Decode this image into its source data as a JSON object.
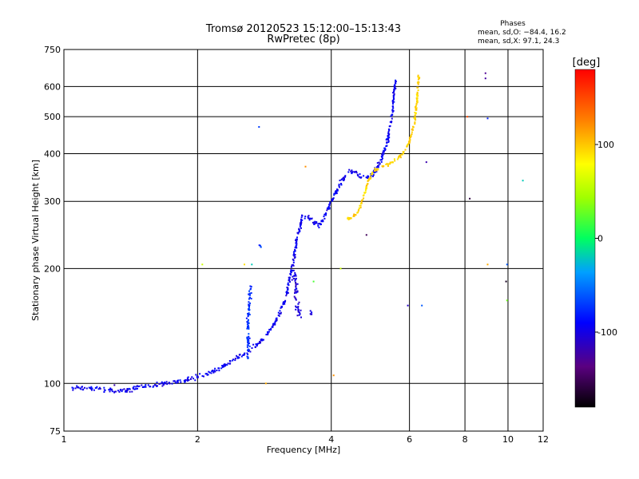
{
  "chart_data": {
    "type": "scatter",
    "title": "Tromsø 20120523 15:12:00–15:13:43",
    "subtitle": "RwPretec (8p)",
    "xlabel": "Frequency [MHz]",
    "ylabel": "Stationary phase Virtual Height [km]",
    "x_scale": "log",
    "y_scale": "log",
    "xlim": [
      1,
      12
    ],
    "ylim": [
      75,
      750
    ],
    "x_ticks": [
      1,
      2,
      4,
      6,
      8,
      10,
      12
    ],
    "y_ticks": [
      75,
      100,
      200,
      300,
      400,
      500,
      600,
      750
    ],
    "grid": true,
    "phases": {
      "heading": "Phases",
      "line1": "mean, sd,O: −84.4, 16.2",
      "line2": "mean, sd,X:  97.1, 24.3"
    },
    "colorbar": {
      "label": "[deg]",
      "range": [
        -180,
        180
      ],
      "ticks": [
        100,
        0,
        -100
      ]
    },
    "traces": [
      {
        "points": [
          [
            1.05,
            97
          ],
          [
            1.2,
            97
          ],
          [
            1.3,
            95.5
          ],
          [
            1.4,
            96
          ],
          [
            1.5,
            98
          ],
          [
            1.7,
            100
          ],
          [
            1.9,
            102
          ],
          [
            2.05,
            105
          ],
          [
            2.2,
            108
          ],
          [
            2.4,
            115
          ],
          [
            2.6,
            121
          ],
          [
            2.8,
            130
          ],
          [
            3.0,
            145
          ],
          [
            3.15,
            165
          ],
          [
            3.25,
            195
          ],
          [
            3.35,
            240
          ],
          [
            3.45,
            275
          ],
          [
            3.6,
            270
          ],
          [
            3.75,
            258
          ],
          [
            3.85,
            270
          ],
          [
            4.0,
            300
          ],
          [
            4.2,
            335
          ],
          [
            4.35,
            360
          ],
          [
            4.5,
            360
          ],
          [
            4.7,
            345
          ],
          [
            4.95,
            352
          ],
          [
            5.15,
            380
          ],
          [
            5.35,
            430
          ],
          [
            5.5,
            510
          ],
          [
            5.58,
            630
          ]
        ],
        "phase": -95,
        "spread": 0.018
      },
      {
        "points": [
          [
            4.3,
            268
          ],
          [
            4.45,
            272
          ],
          [
            4.6,
            282
          ],
          [
            4.7,
            302
          ],
          [
            4.85,
            340
          ],
          [
            5.0,
            362
          ],
          [
            5.2,
            370
          ],
          [
            5.4,
            375
          ],
          [
            5.6,
            385
          ],
          [
            5.8,
            400
          ],
          [
            6.0,
            430
          ],
          [
            6.15,
            480
          ],
          [
            6.25,
            560
          ],
          [
            6.3,
            640
          ]
        ],
        "phase": 95,
        "spread": 0.012
      },
      {
        "points": [
          [
            2.6,
            115
          ],
          [
            2.6,
            150
          ],
          [
            2.63,
            180
          ]
        ],
        "phase": -75,
        "spread": 0.02
      },
      {
        "points": [
          [
            2.75,
            230
          ],
          [
            2.8,
            228
          ]
        ],
        "phase": -75,
        "spread": 0.015
      },
      {
        "points": [
          [
            3.3,
            200
          ],
          [
            3.35,
            165
          ],
          [
            3.4,
            150
          ]
        ],
        "phase": -105,
        "spread": 0.035
      },
      {
        "points": [
          [
            3.6,
            150
          ],
          [
            3.6,
            155
          ]
        ],
        "phase": -100,
        "spread": 0.02
      }
    ],
    "outliers": [
      [
        1.3,
        99,
        -120
      ],
      [
        2.05,
        205,
        60
      ],
      [
        2.55,
        205,
        90
      ],
      [
        2.65,
        205,
        -20
      ],
      [
        2.75,
        470,
        -70
      ],
      [
        2.85,
        100,
        110
      ],
      [
        3.5,
        370,
        120
      ],
      [
        3.65,
        185,
        20
      ],
      [
        4.05,
        105,
        120
      ],
      [
        4.2,
        200,
        60
      ],
      [
        4.8,
        245,
        -150
      ],
      [
        5.95,
        160,
        -110
      ],
      [
        6.4,
        160,
        -60
      ],
      [
        6.55,
        380,
        -120
      ],
      [
        8.1,
        500,
        150
      ],
      [
        8.2,
        305,
        -160
      ],
      [
        8.9,
        650,
        -130
      ],
      [
        8.9,
        630,
        -125
      ],
      [
        9.0,
        495,
        -80
      ],
      [
        9.0,
        205,
        110
      ],
      [
        9.9,
        185,
        -170
      ],
      [
        9.95,
        205,
        -60
      ],
      [
        9.95,
        165,
        30
      ],
      [
        10.8,
        340,
        -20
      ]
    ]
  }
}
